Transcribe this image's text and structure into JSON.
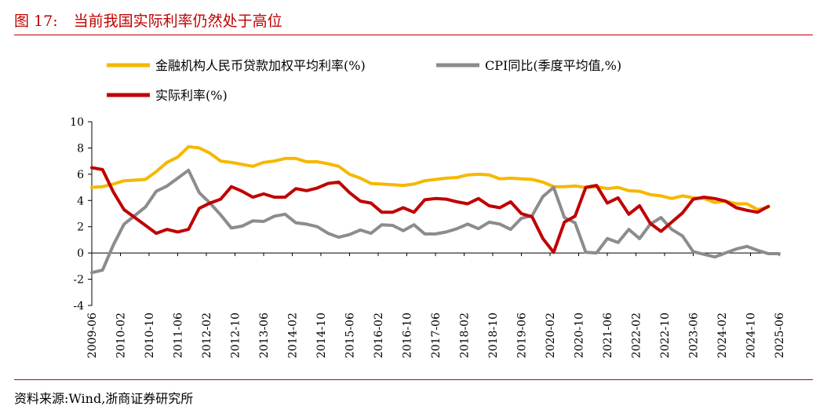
{
  "figure": {
    "number": "图 17:",
    "title": "当前我国实际利率仍然处于高位",
    "source": "资料来源:Wind,浙商证券研究所"
  },
  "chart_data": {
    "type": "line",
    "xlabel": "",
    "ylabel": "",
    "ylim": [
      -4,
      10
    ],
    "yticks": [
      "10",
      "8",
      "6",
      "4",
      "2",
      "0",
      "-2",
      "-4"
    ],
    "x_ticks": [
      "2009-06",
      "2010-02",
      "2010-10",
      "2011-06",
      "2012-02",
      "2012-10",
      "2013-06",
      "2014-02",
      "2014-10",
      "2015-06",
      "2016-02",
      "2016-10",
      "2017-06",
      "2018-02",
      "2018-10",
      "2019-06",
      "2020-02",
      "2020-10",
      "2021-06",
      "2022-02",
      "2022-10",
      "2023-06",
      "2024-02",
      "2024-10",
      "2025-06"
    ],
    "legend_position": "top-left",
    "series": [
      {
        "name": "金融机构人民币贷款加权平均利率(%)",
        "color": "#f5b800",
        "points": [
          [
            "2009-06",
            5.0
          ],
          [
            "2009-09",
            5.05
          ],
          [
            "2009-12",
            5.25
          ],
          [
            "2010-03",
            5.5
          ],
          [
            "2010-06",
            5.55
          ],
          [
            "2010-09",
            5.6
          ],
          [
            "2010-12",
            6.2
          ],
          [
            "2011-03",
            6.9
          ],
          [
            "2011-06",
            7.3
          ],
          [
            "2011-09",
            8.1
          ],
          [
            "2011-12",
            8.0
          ],
          [
            "2012-03",
            7.6
          ],
          [
            "2012-06",
            7.0
          ],
          [
            "2012-09",
            6.9
          ],
          [
            "2012-12",
            6.75
          ],
          [
            "2013-03",
            6.6
          ],
          [
            "2013-06",
            6.9
          ],
          [
            "2013-09",
            7.0
          ],
          [
            "2013-12",
            7.2
          ],
          [
            "2014-03",
            7.2
          ],
          [
            "2014-06",
            6.95
          ],
          [
            "2014-09",
            6.95
          ],
          [
            "2014-12",
            6.8
          ],
          [
            "2015-03",
            6.6
          ],
          [
            "2015-06",
            6.0
          ],
          [
            "2015-09",
            5.7
          ],
          [
            "2015-12",
            5.3
          ],
          [
            "2016-03",
            5.25
          ],
          [
            "2016-06",
            5.2
          ],
          [
            "2016-09",
            5.15
          ],
          [
            "2016-12",
            5.25
          ],
          [
            "2017-03",
            5.5
          ],
          [
            "2017-06",
            5.6
          ],
          [
            "2017-09",
            5.7
          ],
          [
            "2017-12",
            5.75
          ],
          [
            "2018-03",
            5.95
          ],
          [
            "2018-06",
            6.0
          ],
          [
            "2018-09",
            5.95
          ],
          [
            "2018-12",
            5.65
          ],
          [
            "2019-03",
            5.7
          ],
          [
            "2019-06",
            5.65
          ],
          [
            "2019-09",
            5.6
          ],
          [
            "2019-12",
            5.4
          ],
          [
            "2020-03",
            5.05
          ],
          [
            "2020-06",
            5.05
          ],
          [
            "2020-09",
            5.1
          ],
          [
            "2020-12",
            5.0
          ],
          [
            "2021-03",
            5.05
          ],
          [
            "2021-06",
            4.9
          ],
          [
            "2021-09",
            5.0
          ],
          [
            "2021-12",
            4.75
          ],
          [
            "2022-03",
            4.7
          ],
          [
            "2022-06",
            4.45
          ],
          [
            "2022-09",
            4.35
          ],
          [
            "2022-12",
            4.15
          ],
          [
            "2023-03",
            4.35
          ],
          [
            "2023-06",
            4.2
          ],
          [
            "2023-09",
            4.15
          ],
          [
            "2023-12",
            3.85
          ],
          [
            "2024-03",
            3.95
          ],
          [
            "2024-06",
            3.75
          ],
          [
            "2024-09",
            3.75
          ],
          [
            "2024-12",
            3.3
          ],
          [
            "2025-03",
            3.5
          ]
        ]
      },
      {
        "name": "CPI同比(季度平均值,%)",
        "color": "#8c8c8c",
        "points": [
          [
            "2009-06",
            -1.5
          ],
          [
            "2009-09",
            -1.3
          ],
          [
            "2009-12",
            0.6
          ],
          [
            "2010-03",
            2.2
          ],
          [
            "2010-06",
            2.85
          ],
          [
            "2010-09",
            3.5
          ],
          [
            "2010-12",
            4.7
          ],
          [
            "2011-03",
            5.1
          ],
          [
            "2011-06",
            5.7
          ],
          [
            "2011-09",
            6.3
          ],
          [
            "2011-12",
            4.6
          ],
          [
            "2012-03",
            3.8
          ],
          [
            "2012-06",
            2.9
          ],
          [
            "2012-09",
            1.9
          ],
          [
            "2012-12",
            2.05
          ],
          [
            "2013-03",
            2.45
          ],
          [
            "2013-06",
            2.4
          ],
          [
            "2013-09",
            2.8
          ],
          [
            "2013-12",
            2.95
          ],
          [
            "2014-03",
            2.3
          ],
          [
            "2014-06",
            2.2
          ],
          [
            "2014-09",
            2.0
          ],
          [
            "2014-12",
            1.5
          ],
          [
            "2015-03",
            1.2
          ],
          [
            "2015-06",
            1.4
          ],
          [
            "2015-09",
            1.75
          ],
          [
            "2015-12",
            1.5
          ],
          [
            "2016-03",
            2.15
          ],
          [
            "2016-06",
            2.1
          ],
          [
            "2016-09",
            1.7
          ],
          [
            "2016-12",
            2.15
          ],
          [
            "2017-03",
            1.45
          ],
          [
            "2017-06",
            1.45
          ],
          [
            "2017-09",
            1.6
          ],
          [
            "2017-12",
            1.85
          ],
          [
            "2018-03",
            2.2
          ],
          [
            "2018-06",
            1.85
          ],
          [
            "2018-09",
            2.35
          ],
          [
            "2018-12",
            2.2
          ],
          [
            "2019-03",
            1.8
          ],
          [
            "2019-06",
            2.65
          ],
          [
            "2019-09",
            2.85
          ],
          [
            "2019-12",
            4.3
          ],
          [
            "2020-03",
            5.0
          ],
          [
            "2020-06",
            2.7
          ],
          [
            "2020-09",
            2.3
          ],
          [
            "2020-12",
            0.05
          ],
          [
            "2021-03",
            0.0
          ],
          [
            "2021-06",
            1.1
          ],
          [
            "2021-09",
            0.8
          ],
          [
            "2021-12",
            1.8
          ],
          [
            "2022-03",
            1.1
          ],
          [
            "2022-06",
            2.2
          ],
          [
            "2022-09",
            2.7
          ],
          [
            "2022-12",
            1.8
          ],
          [
            "2023-03",
            1.3
          ],
          [
            "2023-06",
            0.1
          ],
          [
            "2023-09",
            -0.1
          ],
          [
            "2023-12",
            -0.3
          ],
          [
            "2024-03",
            0.0
          ],
          [
            "2024-06",
            0.3
          ],
          [
            "2024-09",
            0.5
          ],
          [
            "2024-12",
            0.2
          ],
          [
            "2025-03",
            -0.05
          ],
          [
            "2025-06",
            -0.05
          ]
        ]
      },
      {
        "name": "实际利率(%)",
        "color": "#c00000",
        "points": [
          [
            "2009-06",
            6.5
          ],
          [
            "2009-09",
            6.35
          ],
          [
            "2009-12",
            4.65
          ],
          [
            "2010-03",
            3.3
          ],
          [
            "2010-06",
            2.7
          ],
          [
            "2010-09",
            2.1
          ],
          [
            "2010-12",
            1.5
          ],
          [
            "2011-03",
            1.8
          ],
          [
            "2011-06",
            1.6
          ],
          [
            "2011-09",
            1.8
          ],
          [
            "2011-12",
            3.4
          ],
          [
            "2012-03",
            3.8
          ],
          [
            "2012-06",
            4.1
          ],
          [
            "2012-09",
            5.05
          ],
          [
            "2012-12",
            4.7
          ],
          [
            "2013-03",
            4.25
          ],
          [
            "2013-06",
            4.5
          ],
          [
            "2013-09",
            4.25
          ],
          [
            "2013-12",
            4.25
          ],
          [
            "2014-03",
            4.9
          ],
          [
            "2014-06",
            4.75
          ],
          [
            "2014-09",
            4.95
          ],
          [
            "2014-12",
            5.3
          ],
          [
            "2015-03",
            5.4
          ],
          [
            "2015-06",
            4.6
          ],
          [
            "2015-09",
            3.95
          ],
          [
            "2015-12",
            3.8
          ],
          [
            "2016-03",
            3.1
          ],
          [
            "2016-06",
            3.1
          ],
          [
            "2016-09",
            3.45
          ],
          [
            "2016-12",
            3.1
          ],
          [
            "2017-03",
            4.05
          ],
          [
            "2017-06",
            4.15
          ],
          [
            "2017-09",
            4.1
          ],
          [
            "2017-12",
            3.9
          ],
          [
            "2018-03",
            3.75
          ],
          [
            "2018-06",
            4.15
          ],
          [
            "2018-09",
            3.6
          ],
          [
            "2018-12",
            3.45
          ],
          [
            "2019-03",
            3.9
          ],
          [
            "2019-06",
            3.0
          ],
          [
            "2019-09",
            2.75
          ],
          [
            "2019-12",
            1.1
          ],
          [
            "2020-03",
            0.05
          ],
          [
            "2020-06",
            2.35
          ],
          [
            "2020-09",
            2.8
          ],
          [
            "2020-12",
            5.0
          ],
          [
            "2021-03",
            5.15
          ],
          [
            "2021-06",
            3.8
          ],
          [
            "2021-09",
            4.2
          ],
          [
            "2021-12",
            2.95
          ],
          [
            "2022-03",
            3.6
          ],
          [
            "2022-06",
            2.25
          ],
          [
            "2022-09",
            1.65
          ],
          [
            "2022-12",
            2.35
          ],
          [
            "2023-03",
            3.05
          ],
          [
            "2023-06",
            4.1
          ],
          [
            "2023-09",
            4.25
          ],
          [
            "2023-12",
            4.15
          ],
          [
            "2024-03",
            3.95
          ],
          [
            "2024-06",
            3.45
          ],
          [
            "2024-09",
            3.25
          ],
          [
            "2024-12",
            3.1
          ],
          [
            "2025-03",
            3.55
          ]
        ]
      }
    ]
  }
}
